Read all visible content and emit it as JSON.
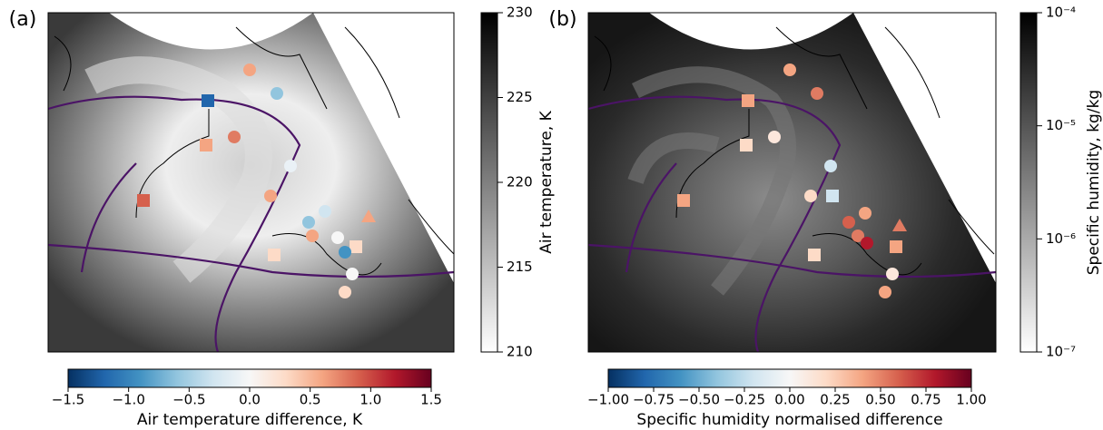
{
  "panels": [
    {
      "label": "(a)",
      "colorbar": {
        "label": "Air temperature, K",
        "lim": [
          210,
          230
        ],
        "ticks": [
          210,
          215,
          220,
          225,
          230
        ]
      },
      "diff_colorbar": {
        "label": "Air temperature difference, K",
        "lim": [
          -1.5,
          1.5
        ],
        "ticks": [
          {
            "value": -1.5,
            "label": "−1.5"
          },
          {
            "value": -1.0,
            "label": "−1.0"
          },
          {
            "value": -0.5,
            "label": "−0.5"
          },
          {
            "value": 0,
            "label": "0.0"
          },
          0.5,
          {
            "value": 1.0,
            "label": "1.0"
          },
          1.5
        ]
      }
    },
    {
      "label": "(b)",
      "colorbar": {
        "label": "Specific humidity, kg/kg",
        "lim": [
          1e-07,
          0.0001
        ],
        "log": true,
        "ticks": [
          {
            "value": 1e-07,
            "label": "10⁻⁷"
          },
          {
            "value": 1e-06,
            "label": "10⁻⁶"
          },
          {
            "value": 1e-05,
            "label": "10⁻⁵"
          },
          {
            "value": 0.0001,
            "label": "10⁻⁴"
          }
        ]
      },
      "diff_colorbar": {
        "label": "Specific humidity normalised difference",
        "lim": [
          -1,
          1
        ],
        "ticks": [
          {
            "value": -1,
            "label": "−1.00"
          },
          {
            "value": -0.75,
            "label": "−0.75"
          },
          {
            "value": -0.5,
            "label": "−0.50"
          },
          {
            "value": -0.25,
            "label": "−0.25"
          },
          {
            "value": 0,
            "label": "0.00"
          },
          {
            "value": 0.25,
            "label": "0.25"
          },
          {
            "value": 0.5,
            "label": "0.50"
          },
          0.75,
          {
            "value": 1,
            "label": "1.00"
          }
        ]
      }
    }
  ]
}
